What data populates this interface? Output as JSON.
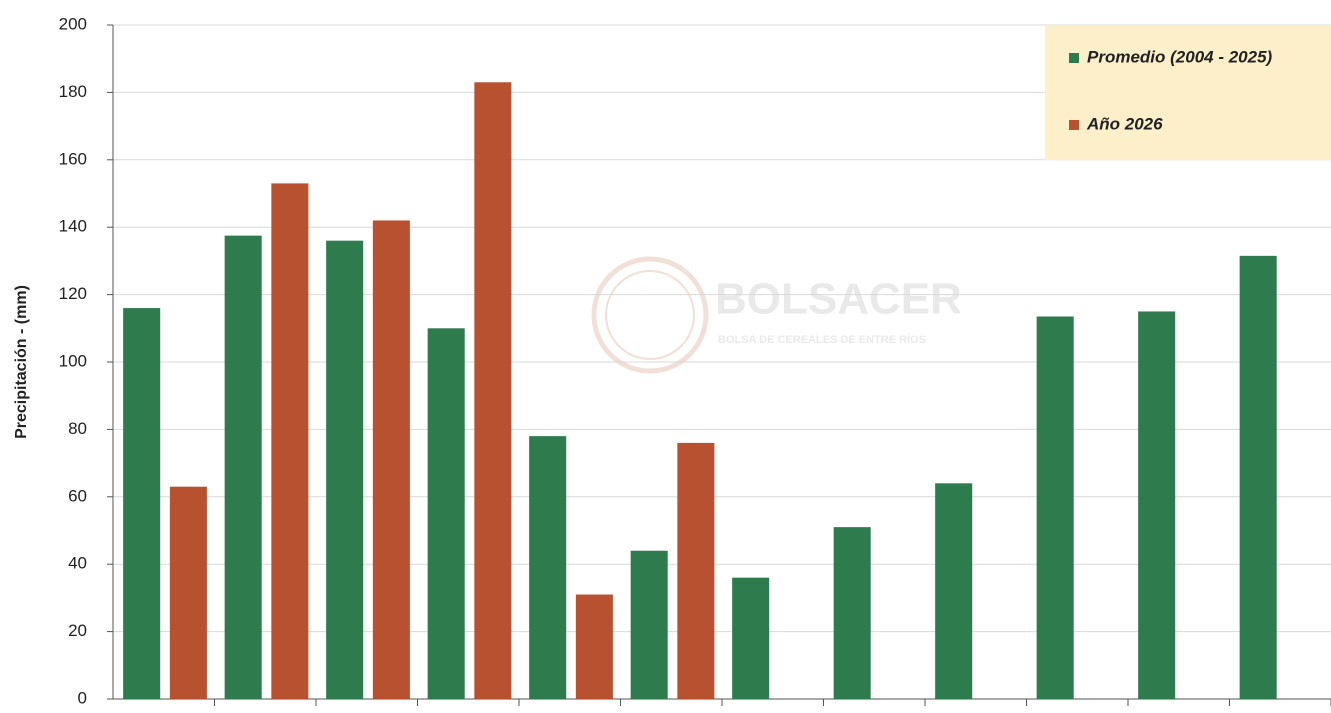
{
  "chart_data": {
    "type": "bar",
    "y_label": "Precipitación - (mm)",
    "watermark": "BOLSACER",
    "watermark_subtitle": "BOLSA DE CEREALES DE ENTRE RÍOS",
    "categories": [
      null,
      null,
      null,
      null,
      null,
      null,
      null,
      null,
      null,
      null,
      null,
      null
    ],
    "series": [
      {
        "name": "Promedio (2004 - 2025)",
        "color": "#2e7b4d",
        "values": [
          116,
          137.5,
          136,
          110,
          78,
          44,
          36,
          51,
          64,
          113.5,
          115,
          131.5
        ]
      },
      {
        "name": "Año 2026",
        "color": "#b8512f",
        "values": [
          63,
          153,
          142,
          183,
          31,
          76,
          null,
          null,
          null,
          null,
          null,
          null
        ]
      }
    ],
    "ylim": [
      0,
      200
    ],
    "yticks": [
      0,
      20,
      40,
      60,
      80,
      100,
      120,
      140,
      160,
      180,
      200
    ],
    "grid": true,
    "legend": "top-right"
  }
}
